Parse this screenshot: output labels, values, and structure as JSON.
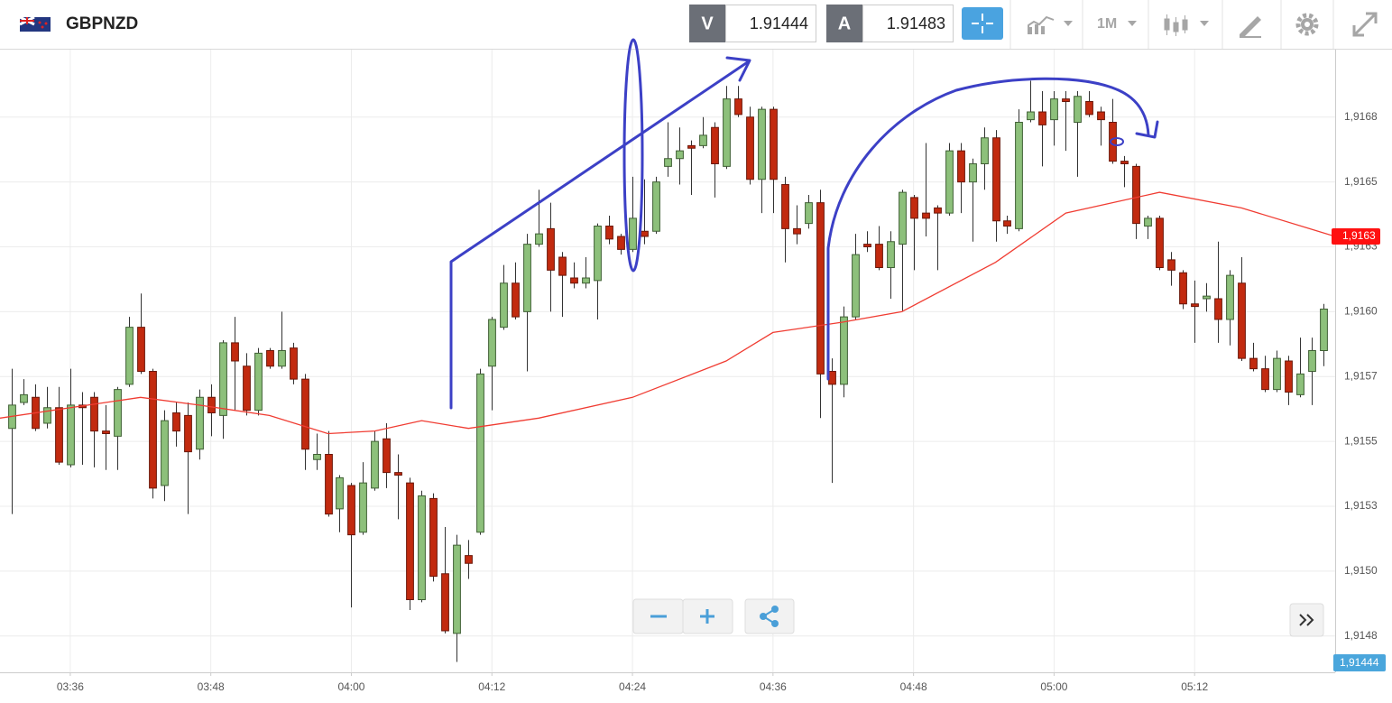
{
  "header": {
    "symbol": "GBPNZD",
    "bid_tag": "V",
    "bid": "1.91444",
    "ask_tag": "A",
    "ask": "1.91483",
    "timeframe": "1M"
  },
  "chart_data": {
    "type": "candlestick",
    "x": [
      "03:31",
      "03:32",
      "03:33",
      "03:34",
      "03:35",
      "03:36",
      "03:37",
      "03:38",
      "03:39",
      "03:40",
      "03:41",
      "03:42",
      "03:43",
      "03:44",
      "03:45",
      "03:46",
      "03:47",
      "03:48",
      "03:49",
      "03:50",
      "03:51",
      "03:52",
      "03:53",
      "03:54",
      "03:55",
      "03:56",
      "03:57",
      "03:58",
      "03:59",
      "04:00",
      "04:01",
      "04:02",
      "04:03",
      "04:04",
      "04:05",
      "04:06",
      "04:07",
      "04:08",
      "04:09",
      "04:10",
      "04:11",
      "04:12",
      "04:13",
      "04:14",
      "04:15",
      "04:16",
      "04:17",
      "04:18",
      "04:19",
      "04:20",
      "04:21",
      "04:22",
      "04:23",
      "04:24",
      "04:25",
      "04:26",
      "04:27",
      "04:28",
      "04:29",
      "04:30",
      "04:31",
      "04:32",
      "04:33",
      "04:34",
      "04:35",
      "04:36",
      "04:37",
      "04:38",
      "04:39",
      "04:40",
      "04:41",
      "04:42",
      "04:43",
      "04:44",
      "04:45",
      "04:46",
      "04:47",
      "04:48",
      "04:49",
      "04:50",
      "04:51",
      "04:52",
      "04:53",
      "04:54",
      "04:55",
      "04:56",
      "04:57",
      "04:58",
      "04:59",
      "05:00",
      "05:01",
      "05:02",
      "05:03",
      "05:04",
      "05:05",
      "05:06",
      "05:07",
      "05:08",
      "05:09",
      "05:10",
      "05:11",
      "05:12",
      "05:13",
      "05:14",
      "05:15",
      "05:16",
      "05:17",
      "05:18",
      "05:19",
      "05:20",
      "05:21",
      "05:22",
      "05:23"
    ],
    "open": [
      1.91555,
      1.91565,
      1.91567,
      1.91557,
      1.91563,
      1.91541,
      1.91564,
      1.91567,
      1.91554,
      1.91552,
      1.91572,
      1.91594,
      1.91577,
      1.91533,
      1.91561,
      1.9156,
      1.91547,
      1.91567,
      1.9156,
      1.91588,
      1.91579,
      1.91562,
      1.91585,
      1.91579,
      1.91586,
      1.91574,
      1.91543,
      1.91545,
      1.91524,
      1.91533,
      1.91515,
      1.91532,
      1.91551,
      1.91538,
      1.91534,
      1.91489,
      1.91528,
      1.91499,
      1.91476,
      1.91506,
      1.91515,
      1.91579,
      1.91594,
      1.91611,
      1.916,
      1.91626,
      1.91632,
      1.91621,
      1.91613,
      1.91611,
      1.91612,
      1.91633,
      1.91629,
      1.91624,
      1.91631,
      1.91631,
      1.91656,
      1.91659,
      1.91664,
      1.91664,
      1.91671,
      1.91656,
      1.91682,
      1.91675,
      1.91651,
      1.91678,
      1.91649,
      1.91632,
      1.91634,
      1.91642,
      1.91577,
      1.91572,
      1.91598,
      1.91626,
      1.91626,
      1.91617,
      1.91626,
      1.91644,
      1.91638,
      1.9164,
      1.91638,
      1.91662,
      1.9165,
      1.91657,
      1.91667,
      1.91635,
      1.91632,
      1.91674,
      1.91677,
      1.91674,
      1.91682,
      1.91673,
      1.91681,
      1.91677,
      1.91673,
      1.91658,
      1.91656,
      1.91633,
      1.91636,
      1.9162,
      1.91615,
      1.91603,
      1.91605,
      1.91605,
      1.91597,
      1.91611,
      1.91582,
      1.91578,
      1.9157,
      1.91581,
      1.91568,
      1.91577,
      1.91585
    ],
    "high": [
      1.91578,
      1.91574,
      1.91572,
      1.91571,
      1.91571,
      1.91578,
      1.91569,
      1.91569,
      1.91564,
      1.91571,
      1.91598,
      1.91607,
      1.91578,
      1.91562,
      1.91565,
      1.91565,
      1.9157,
      1.91572,
      1.91589,
      1.91598,
      1.91584,
      1.91586,
      1.91586,
      1.916,
      1.91588,
      1.91576,
      1.91553,
      1.91554,
      1.91537,
      1.91534,
      1.91542,
      1.91554,
      1.91557,
      1.91545,
      1.91536,
      1.91531,
      1.9153,
      1.91517,
      1.91514,
      1.91512,
      1.91578,
      1.91598,
      1.91618,
      1.91619,
      1.9163,
      1.91647,
      1.91642,
      1.91623,
      1.91619,
      1.91621,
      1.91634,
      1.91637,
      1.9163,
      1.91652,
      1.91651,
      1.91652,
      1.91673,
      1.91671,
      1.91666,
      1.91675,
      1.91673,
      1.91687,
      1.91687,
      1.91679,
      1.91679,
      1.91679,
      1.91652,
      1.91641,
      1.91645,
      1.91647,
      1.91582,
      1.91602,
      1.9163,
      1.91631,
      1.91633,
      1.91631,
      1.91647,
      1.91645,
      1.91665,
      1.91641,
      1.91665,
      1.91665,
      1.91659,
      1.91671,
      1.9167,
      1.91637,
      1.91678,
      1.91689,
      1.91685,
      1.91685,
      1.91685,
      1.91685,
      1.91685,
      1.91679,
      1.91682,
      1.9166,
      1.91657,
      1.91637,
      1.91637,
      1.91623,
      1.91616,
      1.91612,
      1.91611,
      1.91627,
      1.91616,
      1.91621,
      1.91588,
      1.91583,
      1.91585,
      1.91583,
      1.9159,
      1.9159,
      1.91603
    ],
    "low": [
      1.91522,
      1.91564,
      1.91554,
      1.91555,
      1.91541,
      1.9154,
      1.91541,
      1.9154,
      1.91539,
      1.91539,
      1.91571,
      1.91576,
      1.91528,
      1.91527,
      1.91548,
      1.91522,
      1.91543,
      1.91552,
      1.91551,
      1.91562,
      1.9156,
      1.9156,
      1.91578,
      1.91578,
      1.91572,
      1.91539,
      1.91539,
      1.91521,
      1.91515,
      1.91486,
      1.91514,
      1.91531,
      1.91532,
      1.9152,
      1.91485,
      1.91488,
      1.91496,
      1.91476,
      1.91465,
      1.91497,
      1.91514,
      1.91562,
      1.91593,
      1.91597,
      1.91577,
      1.91625,
      1.916,
      1.91598,
      1.91609,
      1.91609,
      1.91597,
      1.91626,
      1.91622,
      1.91623,
      1.91626,
      1.9163,
      1.91652,
      1.91649,
      1.91645,
      1.91663,
      1.91644,
      1.91655,
      1.91675,
      1.91649,
      1.91638,
      1.91638,
      1.91619,
      1.91626,
      1.91632,
      1.91559,
      1.91534,
      1.91567,
      1.91597,
      1.91623,
      1.91616,
      1.91605,
      1.916,
      1.91616,
      1.91629,
      1.91616,
      1.91637,
      1.91638,
      1.91627,
      1.91647,
      1.91627,
      1.9163,
      1.91631,
      1.91673,
      1.91656,
      1.91664,
      1.91662,
      1.91652,
      1.91675,
      1.91664,
      1.91657,
      1.91648,
      1.91628,
      1.91628,
      1.91616,
      1.9161,
      1.91601,
      1.91588,
      1.916,
      1.91588,
      1.91587,
      1.91581,
      1.91577,
      1.91569,
      1.91569,
      1.91564,
      1.91567,
      1.91564,
      1.91579
    ],
    "close": [
      1.91564,
      1.91568,
      1.91555,
      1.91563,
      1.91542,
      1.91564,
      1.91563,
      1.91554,
      1.91553,
      1.9157,
      1.91594,
      1.91577,
      1.91532,
      1.91558,
      1.91554,
      1.91546,
      1.91567,
      1.91561,
      1.91588,
      1.91581,
      1.91562,
      1.91584,
      1.91579,
      1.91585,
      1.91574,
      1.91547,
      1.91545,
      1.91522,
      1.91536,
      1.91514,
      1.91534,
      1.9155,
      1.91538,
      1.91537,
      1.91489,
      1.91529,
      1.91498,
      1.91477,
      1.9151,
      1.91503,
      1.91576,
      1.91597,
      1.91611,
      1.91598,
      1.91626,
      1.9163,
      1.91616,
      1.91614,
      1.91611,
      1.91613,
      1.91633,
      1.91628,
      1.91624,
      1.91636,
      1.91629,
      1.9165,
      1.91659,
      1.91662,
      1.91663,
      1.91668,
      1.91657,
      1.91682,
      1.91676,
      1.91651,
      1.91678,
      1.91651,
      1.91632,
      1.9163,
      1.91642,
      1.91576,
      1.91572,
      1.91598,
      1.91622,
      1.91625,
      1.91617,
      1.91627,
      1.91646,
      1.91636,
      1.91636,
      1.91638,
      1.91662,
      1.9165,
      1.91657,
      1.91667,
      1.91635,
      1.91633,
      1.91673,
      1.91677,
      1.91672,
      1.91682,
      1.91681,
      1.91683,
      1.91676,
      1.91674,
      1.91658,
      1.91657,
      1.91634,
      1.91636,
      1.91617,
      1.91616,
      1.91603,
      1.91602,
      1.91606,
      1.91597,
      1.91614,
      1.91582,
      1.91578,
      1.9157,
      1.91582,
      1.91569,
      1.91576,
      1.91585,
      1.91601
    ],
    "up_color": "#8dc07b",
    "down_color": "#c22a0f",
    "xlim": [
      "03:30",
      "05:24"
    ],
    "ylim": [
      1.91461,
      1.91701
    ],
    "xticks": [
      "03:36",
      "03:48",
      "04:00",
      "04:12",
      "04:24",
      "04:36",
      "04:48",
      "05:00",
      "05:12"
    ],
    "yticks": [
      {
        "value": 1.91675,
        "label": "1,9168"
      },
      {
        "value": 1.9165,
        "label": "1,9165"
      },
      {
        "value": 1.91625,
        "label": "1,9163"
      },
      {
        "value": 1.916,
        "label": "1,9160"
      },
      {
        "value": 1.91575,
        "label": "1,9157"
      },
      {
        "value": 1.9155,
        "label": "1,9155"
      },
      {
        "value": 1.91525,
        "label": "1,9153"
      },
      {
        "value": 1.915,
        "label": "1,9150"
      },
      {
        "value": 1.91475,
        "label": "1,9148"
      }
    ],
    "grid": true,
    "moving_average": {
      "color": "#f03c32",
      "x": [
        "03:30",
        "03:42",
        "03:47",
        "03:53",
        "03:58",
        "04:02",
        "04:06",
        "04:10",
        "04:16",
        "04:24",
        "04:32",
        "04:36",
        "04:42",
        "04:47",
        "04:55",
        "05:01",
        "05:09",
        "05:16",
        "05:24"
      ],
      "values": [
        1.91559,
        1.91567,
        1.91564,
        1.9156,
        1.91553,
        1.91554,
        1.91558,
        1.91555,
        1.91559,
        1.91567,
        1.91581,
        1.91592,
        1.91596,
        1.916,
        1.91619,
        1.91638,
        1.91646,
        1.9164,
        1.91629
      ],
      "value_label": "1,9163"
    },
    "last_price_label": "1,91444",
    "last_price_color": "#4aa6dc"
  }
}
